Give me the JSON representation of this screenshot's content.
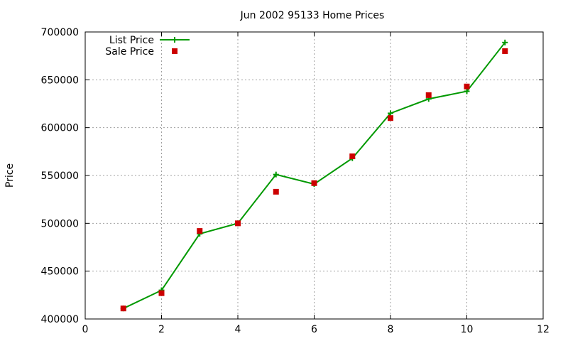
{
  "chart_data": {
    "type": "line",
    "title": "Jun 2002 95133 Home Prices",
    "xlabel": "",
    "ylabel": "Price",
    "xlim": [
      0,
      12
    ],
    "ylim": [
      400000,
      700000
    ],
    "x_ticks": [
      0,
      2,
      4,
      6,
      8,
      10,
      12
    ],
    "y_ticks": [
      400000,
      450000,
      500000,
      550000,
      600000,
      650000,
      700000
    ],
    "grid": true,
    "legend_position": "top-left",
    "series": [
      {
        "name": "List Price",
        "style": "line-plus",
        "color": "#009900",
        "x": [
          1,
          2,
          3,
          4,
          5,
          6,
          7,
          8,
          9,
          10,
          11
        ],
        "y": [
          411000,
          430000,
          489000,
          500000,
          551000,
          541000,
          568000,
          615000,
          630000,
          638000,
          689000
        ]
      },
      {
        "name": "Sale Price",
        "style": "points-square",
        "color": "#cc0000",
        "x": [
          1,
          2,
          3,
          4,
          5,
          6,
          7,
          8,
          9,
          10,
          11
        ],
        "y": [
          411000,
          427000,
          492000,
          500000,
          533000,
          542000,
          570000,
          610000,
          634000,
          643000,
          680000
        ]
      }
    ]
  }
}
